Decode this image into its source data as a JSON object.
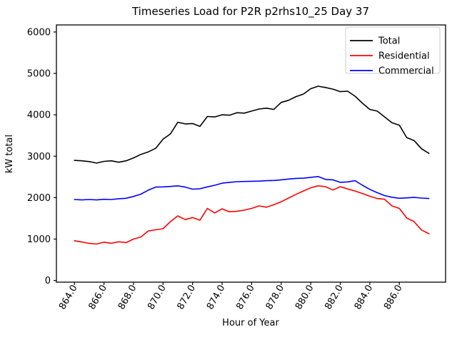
{
  "title": "Timeseries Load for P2R p2rhs10_25  Day 37",
  "chart_data": {
    "type": "line",
    "title": "Timeseries Load for P2R p2rhs10_25  Day 37",
    "xlabel": "Hour of Year",
    "ylabel": "kW total",
    "x_start": 864.0,
    "x_step": 0.5,
    "x_end": 888.0,
    "xlim": [
      862.78,
      889.13
    ],
    "ylim": [
      -40,
      6170
    ],
    "xticks": [
      864,
      866,
      868,
      870,
      872,
      874,
      876,
      878,
      880,
      882,
      884,
      886
    ],
    "xtick_labels": [
      "864.0",
      "866.0",
      "868.0",
      "870.0",
      "872.0",
      "874.0",
      "876.0",
      "878.0",
      "880.0",
      "882.0",
      "884.0",
      "886.0"
    ],
    "yticks": [
      0,
      1000,
      2000,
      3000,
      4000,
      5000,
      6000
    ],
    "ytick_labels": [
      "0",
      "1000",
      "2000",
      "3000",
      "4000",
      "5000",
      "6000"
    ],
    "xtick_rotation": 60,
    "grid": false,
    "background": "#ffffff",
    "legend": {
      "position": "upper right",
      "entries": [
        "Total",
        "Residential",
        "Commercial"
      ]
    },
    "series": [
      {
        "name": "Total",
        "color": "#000000",
        "values": [
          2900,
          2890,
          2870,
          2835,
          2875,
          2890,
          2855,
          2890,
          2960,
          3045,
          3105,
          3190,
          3410,
          3540,
          3820,
          3780,
          3790,
          3720,
          3960,
          3950,
          4000,
          3990,
          4050,
          4040,
          4090,
          4140,
          4160,
          4130,
          4300,
          4350,
          4440,
          4500,
          4630,
          4690,
          4660,
          4620,
          4560,
          4570,
          4450,
          4280,
          4130,
          4090,
          3950,
          3810,
          3750,
          3450,
          3380,
          3180,
          3070
        ]
      },
      {
        "name": "Residential",
        "color": "#ff0000",
        "values": [
          960,
          930,
          895,
          880,
          925,
          900,
          935,
          915,
          1000,
          1050,
          1195,
          1225,
          1250,
          1420,
          1560,
          1470,
          1520,
          1455,
          1740,
          1630,
          1730,
          1660,
          1670,
          1700,
          1740,
          1800,
          1770,
          1830,
          1900,
          1990,
          2080,
          2160,
          2240,
          2285,
          2265,
          2185,
          2265,
          2210,
          2160,
          2100,
          2035,
          1980,
          1960,
          1800,
          1740,
          1510,
          1420,
          1220,
          1130
        ]
      },
      {
        "name": "Commercial",
        "color": "#0000ff",
        "values": [
          1955,
          1945,
          1955,
          1945,
          1960,
          1955,
          1975,
          1985,
          2030,
          2085,
          2180,
          2255,
          2260,
          2270,
          2285,
          2255,
          2205,
          2215,
          2260,
          2300,
          2350,
          2370,
          2385,
          2390,
          2395,
          2400,
          2410,
          2415,
          2430,
          2450,
          2465,
          2470,
          2490,
          2510,
          2440,
          2430,
          2370,
          2380,
          2410,
          2300,
          2200,
          2120,
          2050,
          2010,
          1985,
          1995,
          2005,
          1990,
          1980
        ]
      }
    ]
  }
}
